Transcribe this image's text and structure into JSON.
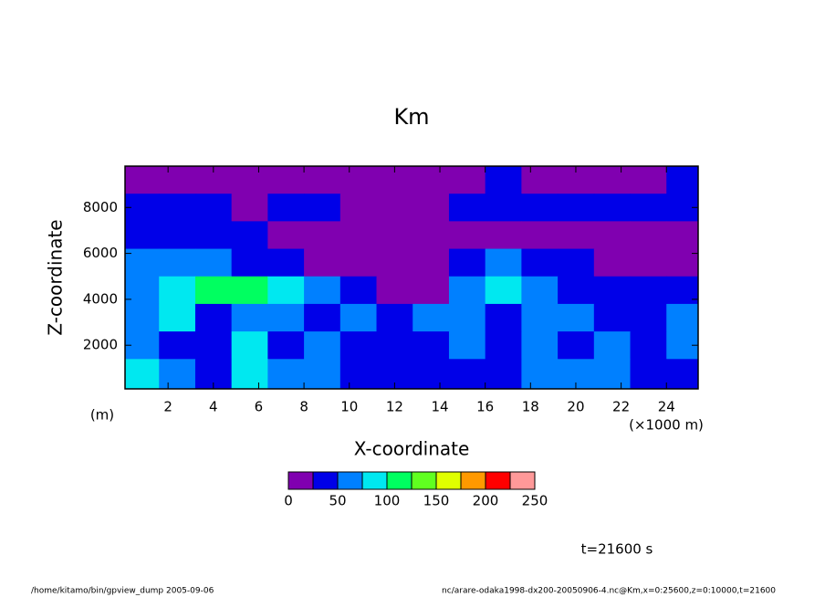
{
  "chart_data": {
    "type": "contourf",
    "title": "Km",
    "xlabel": "X-coordinate",
    "ylabel": "Z-coordinate",
    "xunit": "(×1000 m)",
    "yunit": "(m)",
    "xlim": [
      0.1,
      25.4
    ],
    "xticks": [
      2,
      4,
      6,
      8,
      10,
      12,
      14,
      16,
      18,
      20,
      22,
      24
    ],
    "ylim": [
      100,
      9800
    ],
    "yticks": [
      2000,
      4000,
      6000,
      8000
    ],
    "levels": [
      0,
      25,
      50,
      75,
      100,
      125,
      150,
      175,
      200,
      225,
      250
    ],
    "level_ticks": [
      0,
      50,
      100,
      150,
      200,
      250
    ],
    "colors": [
      "#8000b0",
      "#0000e8",
      "#0080ff",
      "#00e8f0",
      "#00ff60",
      "#60ff20",
      "#e0ff00",
      "#ff9900",
      "#ff0000",
      "#ff9999"
    ],
    "x": [
      0.8,
      2.4,
      4.0,
      5.6,
      7.2,
      8.8,
      10.4,
      12.0,
      13.6,
      15.2,
      16.8,
      18.4,
      20.0,
      21.6,
      23.2,
      24.8
    ],
    "z": [
      9200,
      8000,
      6800,
      5600,
      4400,
      3200,
      2000,
      800
    ],
    "values": [
      [
        10,
        10,
        10,
        10,
        10,
        10,
        10,
        10,
        10,
        10,
        35,
        10,
        10,
        10,
        10,
        35
      ],
      [
        35,
        35,
        35,
        10,
        35,
        35,
        10,
        10,
        10,
        35,
        35,
        35,
        35,
        35,
        35,
        35
      ],
      [
        35,
        35,
        35,
        35,
        10,
        10,
        10,
        10,
        10,
        10,
        10,
        10,
        10,
        10,
        10,
        10
      ],
      [
        60,
        60,
        60,
        35,
        35,
        10,
        10,
        10,
        10,
        35,
        60,
        35,
        35,
        10,
        10,
        10
      ],
      [
        60,
        85,
        110,
        110,
        85,
        60,
        35,
        10,
        10,
        60,
        85,
        60,
        35,
        35,
        35,
        35
      ],
      [
        60,
        85,
        35,
        60,
        60,
        35,
        60,
        35,
        60,
        60,
        35,
        60,
        60,
        35,
        35,
        60
      ],
      [
        60,
        35,
        35,
        85,
        35,
        60,
        35,
        35,
        35,
        60,
        35,
        60,
        35,
        60,
        35,
        60
      ],
      [
        85,
        60,
        35,
        85,
        60,
        60,
        35,
        35,
        35,
        35,
        35,
        60,
        60,
        60,
        35,
        35
      ]
    ],
    "annotation": "t=21600 s",
    "footer_left": "/home/kitamo/bin/gpview_dump  2005-09-06",
    "footer_right": "nc/arare-odaka1998-dx200-20050906-4.nc@Km,x=0:25600,z=0:10000,t=21600"
  }
}
